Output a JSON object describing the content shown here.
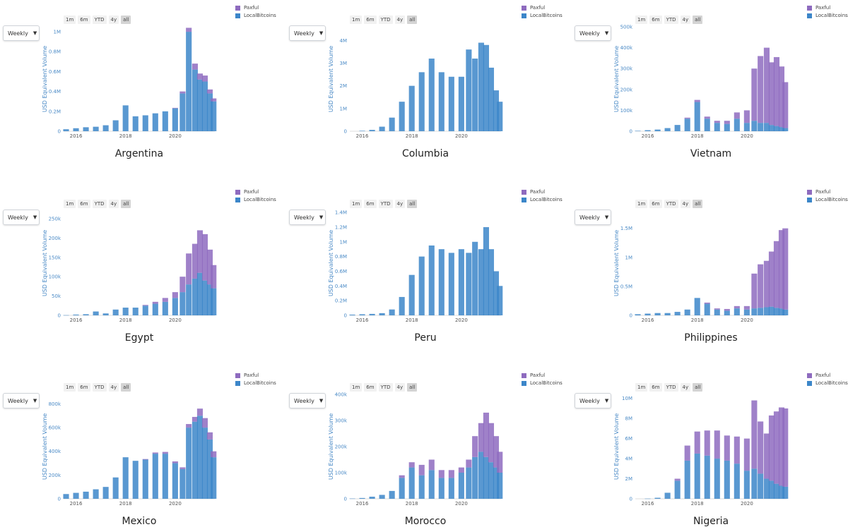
{
  "colors": {
    "paxful": "#8e6bbf",
    "localbitcoins": "#3c86c9",
    "axis_text": "#4a8ac6",
    "tick_text": "#555555"
  },
  "controls": {
    "period": "Weekly",
    "ranges": [
      "1m",
      "6m",
      "YTD",
      "4y",
      "all"
    ],
    "active_range": "all"
  },
  "legend": [
    "Paxful",
    "LocalBitcoins"
  ],
  "ylabel": "USD Equivalent Volume",
  "chart_data": [
    {
      "type": "bar",
      "stacked": true,
      "title": "Argentina",
      "ylabel": "USD Equivalent Volume",
      "xlim": [
        2015.5,
        2021.6
      ],
      "ylim": [
        0,
        1050000
      ],
      "xticks": [
        2016,
        2018,
        2020
      ],
      "xtick_labels": [
        "2016",
        "2018",
        "2020"
      ],
      "yticks": [
        0,
        200000,
        400000,
        600000,
        800000,
        1000000
      ],
      "ytick_labels": [
        "0",
        "0.2M",
        "0.4M",
        "0.6M",
        "0.8M",
        "1M"
      ],
      "x": [
        2015.6,
        2016.0,
        2016.4,
        2016.8,
        2017.2,
        2017.6,
        2018.0,
        2018.4,
        2018.8,
        2019.2,
        2019.6,
        2020.0,
        2020.3,
        2020.55,
        2020.8,
        2021.0,
        2021.2,
        2021.4,
        2021.55
      ],
      "series": [
        {
          "name": "LocalBitcoins",
          "values": [
            20000,
            30000,
            40000,
            45000,
            60000,
            110000,
            260000,
            150000,
            160000,
            180000,
            200000,
            230000,
            380000,
            1000000,
            620000,
            520000,
            500000,
            380000,
            300000
          ]
        },
        {
          "name": "Paxful",
          "values": [
            0,
            0,
            0,
            0,
            0,
            0,
            0,
            0,
            0,
            0,
            0,
            5000,
            20000,
            40000,
            60000,
            60000,
            60000,
            40000,
            30000
          ]
        }
      ]
    },
    {
      "type": "bar",
      "stacked": true,
      "title": "Columbia",
      "ylabel": "USD Equivalent Volume",
      "xlim": [
        2015.5,
        2021.6
      ],
      "ylim": [
        0,
        4600000
      ],
      "xticks": [
        2016,
        2018,
        2020
      ],
      "xtick_labels": [
        "2016",
        "2018",
        "2020"
      ],
      "yticks": [
        0,
        1000000,
        2000000,
        3000000,
        4000000
      ],
      "ytick_labels": [
        "0",
        "1M",
        "2M",
        "3M",
        "4M"
      ],
      "x": [
        2015.6,
        2016.0,
        2016.4,
        2016.8,
        2017.2,
        2017.6,
        2018.0,
        2018.4,
        2018.8,
        2019.2,
        2019.6,
        2020.0,
        2020.3,
        2020.55,
        2020.8,
        2021.0,
        2021.2,
        2021.4,
        2021.55
      ],
      "series": [
        {
          "name": "LocalBitcoins",
          "values": [
            0,
            20000,
            60000,
            200000,
            600000,
            1300000,
            2000000,
            2600000,
            3200000,
            2600000,
            2400000,
            2400000,
            3600000,
            3200000,
            3900000,
            3800000,
            2800000,
            1800000,
            1300000
          ]
        },
        {
          "name": "Paxful",
          "values": [
            0,
            0,
            0,
            0,
            0,
            0,
            0,
            0,
            0,
            0,
            0,
            0,
            0,
            0,
            0,
            0,
            0,
            0,
            0
          ]
        }
      ]
    },
    {
      "type": "bar",
      "stacked": true,
      "title": "Vietnam",
      "ylabel": "USD Equivalent Volume",
      "xlim": [
        2015.5,
        2021.6
      ],
      "ylim": [
        0,
        500000
      ],
      "xticks": [
        2016,
        2018,
        2020
      ],
      "xtick_labels": [
        "2016",
        "2018",
        "2020"
      ],
      "yticks": [
        0,
        100000,
        200000,
        300000,
        400000,
        500000
      ],
      "ytick_labels": [
        "0",
        "100k",
        "200k",
        "300k",
        "400k",
        "500k"
      ],
      "x": [
        2015.6,
        2016.0,
        2016.4,
        2016.8,
        2017.2,
        2017.6,
        2018.0,
        2018.4,
        2018.8,
        2019.2,
        2019.6,
        2020.0,
        2020.3,
        2020.55,
        2020.8,
        2021.0,
        2021.2,
        2021.4,
        2021.55
      ],
      "series": [
        {
          "name": "LocalBitcoins",
          "values": [
            2000,
            5000,
            8000,
            15000,
            30000,
            60000,
            140000,
            60000,
            40000,
            35000,
            60000,
            40000,
            50000,
            40000,
            40000,
            30000,
            25000,
            20000,
            15000
          ]
        },
        {
          "name": "Paxful",
          "values": [
            0,
            0,
            0,
            0,
            0,
            5000,
            10000,
            10000,
            10000,
            15000,
            30000,
            60000,
            250000,
            320000,
            360000,
            300000,
            330000,
            290000,
            220000
          ]
        }
      ]
    },
    {
      "type": "bar",
      "stacked": true,
      "title": "Egypt",
      "ylabel": "USD Equivalent Volume",
      "xlim": [
        2015.5,
        2021.6
      ],
      "ylim": [
        0,
        270000
      ],
      "xticks": [
        2016,
        2018,
        2020
      ],
      "xtick_labels": [
        "2016",
        "2018",
        "2020"
      ],
      "yticks": [
        0,
        50000,
        100000,
        150000,
        200000,
        250000
      ],
      "ytick_labels": [
        "0",
        "50k",
        "100k",
        "150k",
        "200k",
        "250k"
      ],
      "x": [
        2015.6,
        2016.0,
        2016.4,
        2016.8,
        2017.2,
        2017.6,
        2018.0,
        2018.4,
        2018.8,
        2019.2,
        2019.6,
        2020.0,
        2020.3,
        2020.55,
        2020.8,
        2021.0,
        2021.2,
        2021.4,
        2021.55
      ],
      "series": [
        {
          "name": "LocalBitcoins",
          "values": [
            500,
            2000,
            3000,
            10000,
            5000,
            15000,
            20000,
            20000,
            25000,
            30000,
            35000,
            45000,
            60000,
            80000,
            95000,
            110000,
            90000,
            80000,
            70000
          ]
        },
        {
          "name": "Paxful",
          "values": [
            0,
            0,
            0,
            0,
            0,
            0,
            0,
            0,
            2000,
            5000,
            10000,
            15000,
            40000,
            80000,
            90000,
            110000,
            120000,
            90000,
            60000
          ]
        }
      ]
    },
    {
      "type": "bar",
      "stacked": true,
      "title": "Peru",
      "ylabel": "USD Equivalent Volume",
      "xlim": [
        2015.5,
        2021.6
      ],
      "ylim": [
        0,
        1420000
      ],
      "xticks": [
        2016,
        2018,
        2020
      ],
      "xtick_labels": [
        "2016",
        "2018",
        "2020"
      ],
      "yticks": [
        0,
        200000,
        400000,
        600000,
        800000,
        1000000,
        1200000,
        1400000
      ],
      "ytick_labels": [
        "0",
        "0.2M",
        "0.4M",
        "0.6M",
        "0.8M",
        "1M",
        "1.2M",
        "1.4M"
      ],
      "x": [
        2015.6,
        2016.0,
        2016.4,
        2016.8,
        2017.2,
        2017.6,
        2018.0,
        2018.4,
        2018.8,
        2019.2,
        2019.6,
        2020.0,
        2020.3,
        2020.55,
        2020.8,
        2021.0,
        2021.2,
        2021.4,
        2021.55
      ],
      "series": [
        {
          "name": "LocalBitcoins",
          "values": [
            10000,
            15000,
            20000,
            30000,
            80000,
            250000,
            550000,
            800000,
            950000,
            900000,
            850000,
            900000,
            850000,
            1000000,
            900000,
            1200000,
            900000,
            600000,
            400000
          ]
        },
        {
          "name": "Paxful",
          "values": [
            0,
            0,
            0,
            0,
            0,
            0,
            0,
            0,
            0,
            0,
            0,
            0,
            0,
            0,
            0,
            0,
            0,
            0,
            0
          ]
        }
      ]
    },
    {
      "type": "bar",
      "stacked": true,
      "title": "Philippines",
      "ylabel": "USD Equivalent Volume",
      "xlim": [
        2015.5,
        2021.6
      ],
      "ylim": [
        0,
        1800000
      ],
      "xticks": [
        2016,
        2018,
        2020
      ],
      "xtick_labels": [
        "2016",
        "2018",
        "2020"
      ],
      "yticks": [
        0,
        500000,
        1000000,
        1500000
      ],
      "ytick_labels": [
        "0",
        "0.5M",
        "1M",
        "1.5M"
      ],
      "x": [
        2015.6,
        2016.0,
        2016.4,
        2016.8,
        2017.2,
        2017.6,
        2018.0,
        2018.4,
        2018.8,
        2019.2,
        2019.6,
        2020.0,
        2020.3,
        2020.55,
        2020.8,
        2021.0,
        2021.2,
        2021.4,
        2021.55
      ],
      "series": [
        {
          "name": "LocalBitcoins",
          "values": [
            20000,
            30000,
            40000,
            40000,
            60000,
            100000,
            300000,
            200000,
            100000,
            80000,
            120000,
            100000,
            120000,
            130000,
            140000,
            150000,
            130000,
            120000,
            100000
          ]
        },
        {
          "name": "Paxful",
          "values": [
            0,
            0,
            0,
            0,
            0,
            0,
            0,
            20000,
            20000,
            30000,
            40000,
            60000,
            600000,
            750000,
            800000,
            950000,
            1150000,
            1350000,
            1400000
          ]
        }
      ]
    },
    {
      "type": "bar",
      "stacked": true,
      "title": "Mexico",
      "ylabel": "USD Equivalent Volume",
      "xlim": [
        2015.5,
        2021.6
      ],
      "ylim": [
        0,
        880000
      ],
      "xticks": [
        2016,
        2018,
        2020
      ],
      "xtick_labels": [
        "2016",
        "2018",
        "2020"
      ],
      "yticks": [
        0,
        200000,
        400000,
        600000,
        800000
      ],
      "ytick_labels": [
        "0",
        "200k",
        "400k",
        "600k",
        "800k"
      ],
      "x": [
        2015.6,
        2016.0,
        2016.4,
        2016.8,
        2017.2,
        2017.6,
        2018.0,
        2018.4,
        2018.8,
        2019.2,
        2019.6,
        2020.0,
        2020.3,
        2020.55,
        2020.8,
        2021.0,
        2021.2,
        2021.4,
        2021.55
      ],
      "series": [
        {
          "name": "LocalBitcoins",
          "values": [
            40000,
            50000,
            60000,
            80000,
            100000,
            180000,
            350000,
            320000,
            330000,
            380000,
            380000,
            300000,
            250000,
            600000,
            650000,
            700000,
            600000,
            500000,
            350000
          ]
        },
        {
          "name": "Paxful",
          "values": [
            0,
            0,
            0,
            0,
            0,
            0,
            0,
            0,
            5000,
            10000,
            15000,
            15000,
            15000,
            30000,
            40000,
            60000,
            80000,
            60000,
            50000
          ]
        }
      ]
    },
    {
      "type": "bar",
      "stacked": true,
      "title": "Morocco",
      "ylabel": "USD Equivalent Volume",
      "xlim": [
        2015.5,
        2021.6
      ],
      "ylim": [
        0,
        400000
      ],
      "xticks": [
        2016,
        2018,
        2020
      ],
      "xtick_labels": [
        "2016",
        "2018",
        "2020"
      ],
      "yticks": [
        0,
        100000,
        200000,
        300000,
        400000
      ],
      "ytick_labels": [
        "0",
        "100k",
        "200k",
        "300k",
        "400k"
      ],
      "x": [
        2015.6,
        2016.0,
        2016.4,
        2016.8,
        2017.2,
        2017.6,
        2018.0,
        2018.4,
        2018.8,
        2019.2,
        2019.6,
        2020.0,
        2020.3,
        2020.55,
        2020.8,
        2021.0,
        2021.2,
        2021.4,
        2021.55
      ],
      "series": [
        {
          "name": "LocalBitcoins",
          "values": [
            1000,
            3000,
            8000,
            15000,
            30000,
            80000,
            120000,
            90000,
            110000,
            80000,
            80000,
            100000,
            120000,
            160000,
            180000,
            160000,
            140000,
            120000,
            100000
          ]
        },
        {
          "name": "Paxful",
          "values": [
            0,
            0,
            0,
            0,
            0,
            10000,
            20000,
            40000,
            40000,
            30000,
            30000,
            20000,
            30000,
            80000,
            110000,
            170000,
            150000,
            120000,
            80000
          ]
        }
      ]
    },
    {
      "type": "bar",
      "stacked": true,
      "title": "Nigeria",
      "ylabel": "USD Equivalent Volume",
      "xlim": [
        2015.5,
        2021.6
      ],
      "ylim": [
        0,
        10400000
      ],
      "xticks": [
        2016,
        2018,
        2020
      ],
      "xtick_labels": [
        "2016",
        "2018",
        "2020"
      ],
      "yticks": [
        0,
        2000000,
        4000000,
        6000000,
        8000000,
        10000000
      ],
      "ytick_labels": [
        "0",
        "2M",
        "4M",
        "6M",
        "8M",
        "10M"
      ],
      "x": [
        2015.6,
        2016.0,
        2016.4,
        2016.8,
        2017.2,
        2017.6,
        2018.0,
        2018.4,
        2018.8,
        2019.2,
        2019.6,
        2020.0,
        2020.3,
        2020.55,
        2020.8,
        2021.0,
        2021.2,
        2021.4,
        2021.55
      ],
      "series": [
        {
          "name": "LocalBitcoins",
          "values": [
            0,
            20000,
            100000,
            600000,
            1800000,
            3800000,
            4500000,
            4300000,
            4000000,
            3800000,
            3500000,
            2800000,
            3000000,
            2500000,
            2000000,
            1800000,
            1500000,
            1300000,
            1200000
          ]
        },
        {
          "name": "Paxful",
          "values": [
            0,
            0,
            0,
            0,
            200000,
            1500000,
            2200000,
            2500000,
            2800000,
            2500000,
            2700000,
            3200000,
            6800000,
            5200000,
            4500000,
            6500000,
            7200000,
            7800000,
            7800000
          ]
        }
      ]
    }
  ]
}
